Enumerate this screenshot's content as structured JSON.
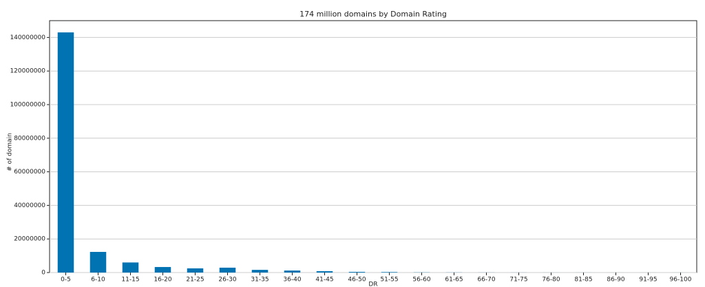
{
  "chart_data": {
    "type": "bar",
    "title": "174 million domains by Domain Rating",
    "x_label": "DR",
    "y_label": "# of domain",
    "categories": [
      "0-5",
      "6-10",
      "11-15",
      "16-20",
      "21-25",
      "26-30",
      "31-35",
      "36-40",
      "41-45",
      "46-50",
      "51-55",
      "56-60",
      "61-65",
      "66-70",
      "71-75",
      "76-80",
      "81-85",
      "86-90",
      "91-95",
      "96-100"
    ],
    "values": [
      143000000,
      12300000,
      6000000,
      3300000,
      2500000,
      2900000,
      1600000,
      1200000,
      800000,
      400000,
      300000,
      100000,
      60000,
      40000,
      30000,
      20000,
      20000,
      10000,
      10000,
      10000
    ],
    "color": "#0173b2",
    "ylim": [
      0,
      150000000
    ],
    "yticks": [
      0,
      20000000,
      40000000,
      60000000,
      80000000,
      100000000,
      120000000,
      140000000
    ],
    "grid": true
  }
}
